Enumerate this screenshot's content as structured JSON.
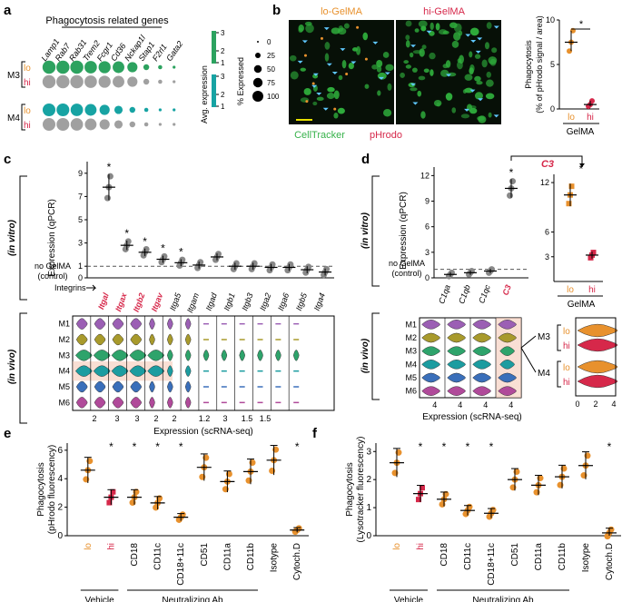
{
  "panel_labels": {
    "a": "a",
    "b": "b",
    "c": "c",
    "d": "d",
    "e": "e",
    "f": "f"
  },
  "panel_a": {
    "title": "Phagocytosis related genes",
    "genes": [
      "Lamp1",
      "Rab7",
      "Rab31",
      "Trem2",
      "Fcgr1",
      "Cd36",
      "Nckap1l",
      "Stap1",
      "F2rl1",
      "Gata2"
    ],
    "groups": [
      {
        "name": "M3",
        "rows": [
          {
            "label": "lo",
            "color": "#2ca25f",
            "sizes": [
              100,
              100,
              100,
              90,
              85,
              80,
              60,
              20,
              10,
              5
            ]
          },
          {
            "label": "hi",
            "color": "#a0a0a0",
            "sizes": [
              100,
              100,
              100,
              90,
              85,
              80,
              60,
              20,
              10,
              5
            ]
          }
        ]
      },
      {
        "name": "M4",
        "rows": [
          {
            "label": "lo",
            "color": "#17a3a3",
            "sizes": [
              95,
              95,
              90,
              80,
              60,
              40,
              20,
              10,
              5,
              5
            ]
          },
          {
            "label": "hi",
            "color": "#a0a0a0",
            "sizes": [
              95,
              95,
              90,
              80,
              60,
              40,
              20,
              10,
              5,
              5
            ]
          }
        ]
      }
    ],
    "avg_expression_label": "Avg. expression",
    "colorbar_ticks": [
      "3",
      "2",
      "1"
    ],
    "pct_expressed_label": "% Expressed",
    "pct_ticks": [
      "0",
      "25",
      "50",
      "75",
      "100"
    ]
  },
  "panel_b": {
    "left_label": "lo-GelMA",
    "right_label": "hi-GelMA",
    "stain1": "CellTracker",
    "stain2": "pHrodo",
    "chart_data": {
      "type": "scatter",
      "ylabel": "Phagocytosis (% of pHrodo signal / area)",
      "xlabel": "GelMA",
      "categories": [
        "lo",
        "hi"
      ],
      "values": [
        [
          6.5,
          7.5,
          8.8
        ],
        [
          0.3,
          0.5,
          0.9
        ]
      ],
      "means": [
        7.5,
        0.5
      ],
      "ylim": [
        0,
        10
      ],
      "yticks": [
        "0",
        "5",
        "10"
      ],
      "significance": "*"
    }
  },
  "panel_c": {
    "in_vitro_label": "(in vitro)",
    "in_vivo_label": "(in vivo)",
    "ylabel": "Expression (qPCR)",
    "control_label": "no GelMA (control)",
    "integrins_label": "Integrins",
    "xlabel": "Expression (scRNA-seq)",
    "chart_data": {
      "type": "scatter",
      "genes": [
        "Itgal",
        "Itgax",
        "Itgb2",
        "Itgav",
        "Itga5",
        "Itgam",
        "Itgad",
        "Itgb1",
        "Itgb3",
        "Itga2",
        "Itga6",
        "Itgb5",
        "Itga4"
      ],
      "highlight": [
        true,
        true,
        true,
        true,
        false,
        false,
        false,
        false,
        false,
        false,
        false,
        false,
        false
      ],
      "means": [
        7.8,
        2.8,
        2.2,
        1.6,
        1.3,
        1.1,
        1.8,
        1.0,
        1.0,
        0.9,
        0.9,
        0.7,
        0.5
      ],
      "significance": [
        "*",
        "*",
        "*",
        "*",
        "*",
        "",
        "",
        "",
        "",
        "",
        "",
        "",
        ""
      ],
      "ylim": [
        0,
        10
      ],
      "yticks": [
        "0",
        "1",
        "3",
        "5",
        "7",
        "9"
      ],
      "control_level": 1
    },
    "clusters": [
      "M1",
      "M2",
      "M3",
      "M4",
      "M5",
      "M6"
    ],
    "cluster_colors": [
      "#9b5fb4",
      "#a89a2c",
      "#2ea36b",
      "#1c9ca0",
      "#3a6fba",
      "#b04a9a"
    ],
    "violin_axis_ticks": [
      "2",
      "3",
      "3",
      "2",
      "2",
      "1.2",
      "3",
      "1.5",
      "1.5"
    ]
  },
  "panel_d": {
    "in_vitro_label": "(in vitro)",
    "in_vivo_label": "(in vivo)",
    "ylabel": "Expression (qPCR)",
    "control_label": "no GelMA (control)",
    "xlabel": "Expression (scRNA-seq)",
    "c3_label": "C3",
    "chart_data": {
      "type": "scatter",
      "genes": [
        "C1qa",
        "C1qb",
        "C1qc",
        "C3"
      ],
      "means": [
        0.4,
        0.6,
        0.8,
        10.5
      ],
      "significance": [
        "",
        "",
        "",
        "*"
      ],
      "ylim": [
        0,
        13
      ],
      "yticks": [
        "0",
        "3",
        "6",
        "9",
        "12"
      ]
    },
    "right_chart": {
      "type": "scatter",
      "categories": [
        "lo",
        "hi"
      ],
      "means": [
        10.5,
        3.2
      ],
      "yticks": [
        "3",
        "6",
        "12"
      ],
      "xlabel": "GelMA"
    },
    "clusters": [
      "M1",
      "M2",
      "M3",
      "M4",
      "M5",
      "M6"
    ],
    "violin_ticks": [
      "4",
      "4",
      "4",
      "4"
    ],
    "c3_groups": [
      {
        "name": "M3",
        "rows": [
          "lo",
          "hi"
        ]
      },
      {
        "name": "M4",
        "rows": [
          "lo",
          "hi"
        ]
      }
    ],
    "c3_xticks": [
      "0",
      "2",
      "4"
    ]
  },
  "panel_e": {
    "chart_data": {
      "type": "scatter",
      "ylabel": "Phagocytosis (pHrodo fluorescency)",
      "categories": [
        "lo",
        "hi",
        "CD18",
        "CD11c",
        "CD18+11c",
        "CD51",
        "CD11a",
        "CD11b",
        "Isotype",
        "Cytoch.D"
      ],
      "means": [
        4.6,
        2.7,
        2.7,
        2.3,
        1.3,
        4.8,
        3.8,
        4.5,
        5.3,
        0.4
      ],
      "significance": [
        "",
        "*",
        "*",
        "*",
        "*",
        "",
        "",
        "",
        "",
        "*"
      ],
      "ylim": [
        0,
        6.5
      ],
      "yticks": [
        "0",
        "2",
        "4",
        "6"
      ]
    },
    "group1": "Vehicle",
    "group2": "Neutralizing Ab"
  },
  "panel_f": {
    "chart_data": {
      "type": "scatter",
      "ylabel": "Phagocytosis (Lysotracker fluorescency)",
      "categories": [
        "lo",
        "hi",
        "CD18",
        "CD11c",
        "CD18+11c",
        "CD51",
        "CD11a",
        "CD11b",
        "Isotype",
        "Cytoch.D"
      ],
      "means": [
        2.6,
        1.5,
        1.3,
        0.9,
        0.8,
        2.0,
        1.8,
        2.1,
        2.5,
        0.1
      ],
      "significance": [
        "",
        "*",
        "*",
        "*",
        "*",
        "",
        "",
        "",
        "",
        "*"
      ],
      "ylim": [
        0,
        3.3
      ],
      "yticks": [
        "0",
        "1",
        "2",
        "3"
      ]
    },
    "group1": "Vehicle",
    "group2": "Neutralizing Ab"
  },
  "colors": {
    "lo": "#e8912d",
    "hi": "#d6284a",
    "accent_red": "#d6284a",
    "grey": "#888888",
    "green": "#36c24a"
  }
}
